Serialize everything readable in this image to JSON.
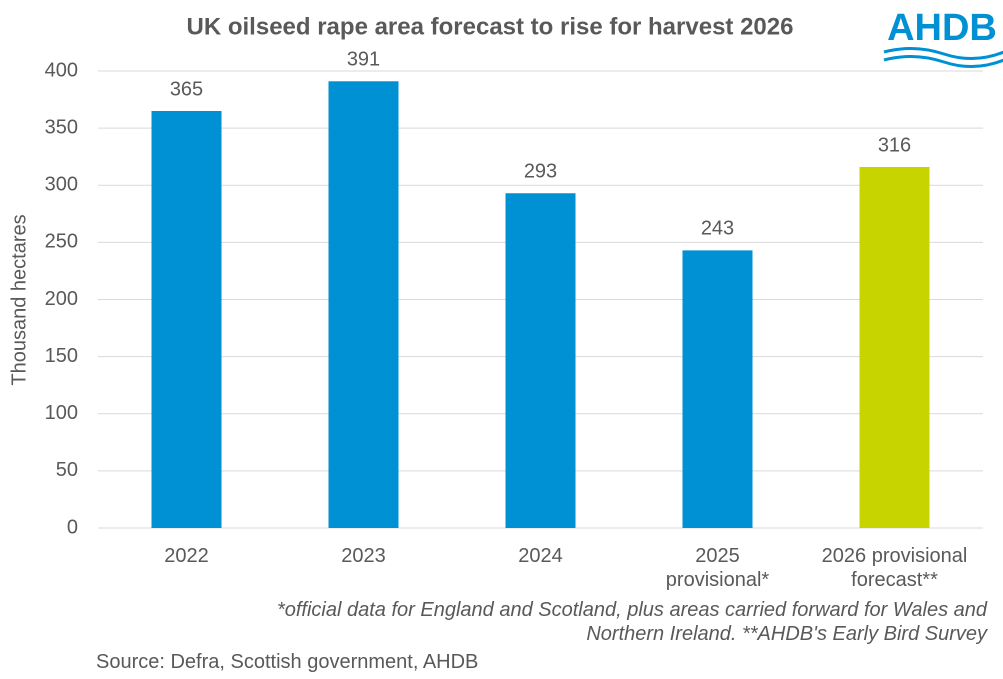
{
  "logo": "AHDB",
  "chart_data": {
    "type": "bar",
    "title": "UK oilseed rape area forecast to rise for harvest 2026",
    "y_label": "Thousand hectares",
    "categories": [
      "2022",
      "2023",
      "2024",
      "2025\nprovisional*",
      "2026 provisional\nforecast**"
    ],
    "values": [
      365,
      391,
      293,
      243,
      316
    ],
    "colors": [
      "#0090d4",
      "#0090d4",
      "#0090d4",
      "#0090d4",
      "#c8d400"
    ],
    "ylim": [
      0,
      400
    ],
    "yticks": [
      0,
      50,
      100,
      150,
      200,
      250,
      300,
      350,
      400
    ],
    "grid": true,
    "footnote": "*official data for England and Scotland, plus areas carried forward for Wales and\nNorthern Ireland. **AHDB's Early Bird Survey",
    "source": "Source: Defra, Scottish government, AHDB"
  }
}
